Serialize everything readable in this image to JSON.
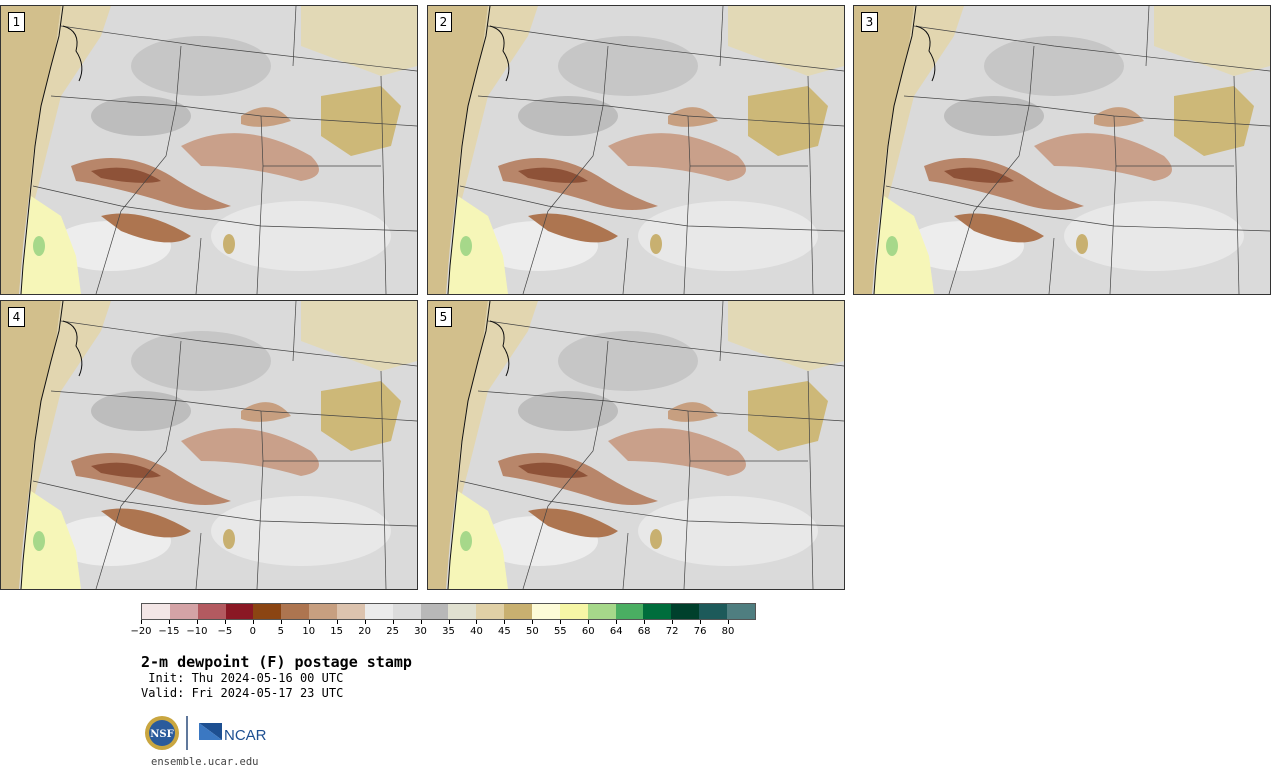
{
  "panels": [
    {
      "label": "1"
    },
    {
      "label": "2"
    },
    {
      "label": "3"
    },
    {
      "label": "4"
    },
    {
      "label": "5"
    }
  ],
  "colorbar": {
    "colors": [
      "#f3e6e6",
      "#d4a3a6",
      "#b35a60",
      "#8a1824",
      "#8b4513",
      "#ad7550",
      "#c79f80",
      "#dcc3ae",
      "#ebebeb",
      "#dcdcdc",
      "#b8b8b8",
      "#e0e0d0",
      "#e0d0a6",
      "#c8b070",
      "#fdfbd8",
      "#f6f6a6",
      "#a6d88a",
      "#4aae62",
      "#006d3c",
      "#00402c",
      "#1d5a5a",
      "#4f7e80"
    ],
    "tick_labels": [
      "−20",
      "−15",
      "−10",
      "−5",
      "0",
      "5",
      "10",
      "15",
      "20",
      "25",
      "30",
      "35",
      "40",
      "45",
      "50",
      "55",
      "60",
      "64",
      "68",
      "72",
      "76",
      "80"
    ]
  },
  "title": "2-m dewpoint (F) postage stamp",
  "init": " Init: Thu 2024-05-16 00 UTC",
  "valid": "Valid: Fri 2024-05-17 23 UTC",
  "logos": {
    "nsf": "NSF",
    "ncar": "NCAR"
  },
  "site": "ensemble.ucar.edu"
}
